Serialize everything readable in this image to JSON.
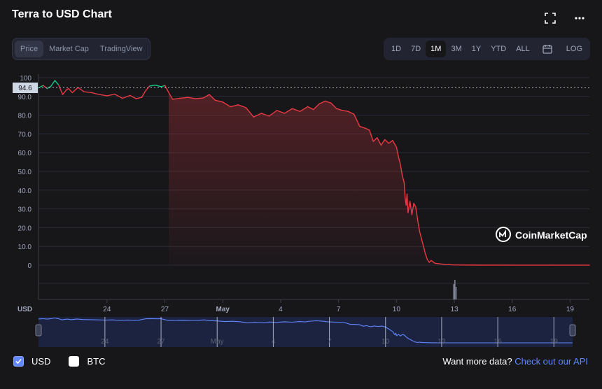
{
  "header": {
    "title": "Terra to USD Chart",
    "fullscreen_icon": "expand-icon",
    "more_icon": "more-horizontal-icon"
  },
  "view_tabs": [
    {
      "label": "Price",
      "active": true
    },
    {
      "label": "Market Cap",
      "active": false
    },
    {
      "label": "TradingView",
      "active": false
    }
  ],
  "range_tabs": [
    {
      "label": "1D",
      "active": false
    },
    {
      "label": "7D",
      "active": false
    },
    {
      "label": "1M",
      "active": true
    },
    {
      "label": "3M",
      "active": false
    },
    {
      "label": "1Y",
      "active": false
    },
    {
      "label": "YTD",
      "active": false
    },
    {
      "label": "ALL",
      "active": false
    }
  ],
  "calendar_icon": "calendar-icon",
  "log_label": "LOG",
  "colors": {
    "up": "#16c784",
    "down": "#ea3943",
    "accent": "#6188ff",
    "navigator": "#1c2340"
  },
  "chart_data": {
    "type": "line",
    "title": "",
    "xlabel": "",
    "ylabel": "",
    "currency_label": "USD",
    "current_price_label": "94.6",
    "ylim": [
      0,
      100
    ],
    "y_ticks": [
      "100",
      "90.0",
      "80.0",
      "70.0",
      "60.0",
      "50.0",
      "40.0",
      "30.0",
      "20.0",
      "10.0",
      "0"
    ],
    "y_tick_values": [
      100,
      90,
      80,
      70,
      60,
      50,
      40,
      30,
      20,
      10,
      0
    ],
    "x_ticks": [
      {
        "label": "24",
        "day": 3
      },
      {
        "label": "27",
        "day": 6
      },
      {
        "label": "May",
        "day": 9
      },
      {
        "label": "4",
        "day": 12
      },
      {
        "label": "7",
        "day": 15
      },
      {
        "label": "10",
        "day": 18
      },
      {
        "label": "13",
        "day": 21
      },
      {
        "label": "16",
        "day": 24
      },
      {
        "label": "19",
        "day": 27
      }
    ],
    "xlim": [
      -0.55,
      28
    ],
    "watermark": "CoinMarketCap",
    "series": [
      {
        "name": "USD",
        "points": [
          [
            -0.55,
            94.6
          ],
          [
            -0.3,
            95.8
          ],
          [
            -0.1,
            94.2
          ],
          [
            0.1,
            95.5
          ],
          [
            0.3,
            98.5
          ],
          [
            0.5,
            96.0
          ],
          [
            0.7,
            91.0
          ],
          [
            0.9,
            93.5
          ],
          [
            1.0,
            94.2
          ],
          [
            1.2,
            92.0
          ],
          [
            1.5,
            94.8
          ],
          [
            1.8,
            92.5
          ],
          [
            2.2,
            92.0
          ],
          [
            2.6,
            91.0
          ],
          [
            3.0,
            90.3
          ],
          [
            3.4,
            91.2
          ],
          [
            3.8,
            89.0
          ],
          [
            4.2,
            90.5
          ],
          [
            4.5,
            88.8
          ],
          [
            4.8,
            89.5
          ],
          [
            5.0,
            93.0
          ],
          [
            5.2,
            95.5
          ],
          [
            5.5,
            96.0
          ],
          [
            5.8,
            95.2
          ],
          [
            6.0,
            95.8
          ],
          [
            6.2,
            92.0
          ],
          [
            6.4,
            88.5
          ],
          [
            6.8,
            89.0
          ],
          [
            7.2,
            89.5
          ],
          [
            7.6,
            88.8
          ],
          [
            8.0,
            89.2
          ],
          [
            8.3,
            91.0
          ],
          [
            8.6,
            88.0
          ],
          [
            9.0,
            87.0
          ],
          [
            9.4,
            84.5
          ],
          [
            9.8,
            85.5
          ],
          [
            10.2,
            84.0
          ],
          [
            10.6,
            79.0
          ],
          [
            11.0,
            81.0
          ],
          [
            11.4,
            79.5
          ],
          [
            11.8,
            82.5
          ],
          [
            12.2,
            81.0
          ],
          [
            12.6,
            83.5
          ],
          [
            13.0,
            82.0
          ],
          [
            13.4,
            84.5
          ],
          [
            13.7,
            83.0
          ],
          [
            14.0,
            86.0
          ],
          [
            14.3,
            87.5
          ],
          [
            14.6,
            86.5
          ],
          [
            14.9,
            83.5
          ],
          [
            15.2,
            82.5
          ],
          [
            15.5,
            82.0
          ],
          [
            15.8,
            80.5
          ],
          [
            16.1,
            74.0
          ],
          [
            16.4,
            73.0
          ],
          [
            16.6,
            72.0
          ],
          [
            16.8,
            66.0
          ],
          [
            17.0,
            68.0
          ],
          [
            17.2,
            64.0
          ],
          [
            17.4,
            67.0
          ],
          [
            17.6,
            65.0
          ],
          [
            17.8,
            66.5
          ],
          [
            18.0,
            63.0
          ],
          [
            18.1,
            58.0
          ],
          [
            18.2,
            54.0
          ],
          [
            18.3,
            48.0
          ],
          [
            18.4,
            44.0
          ],
          [
            18.45,
            36.0
          ],
          [
            18.5,
            32.0
          ],
          [
            18.55,
            38.0
          ],
          [
            18.6,
            28.0
          ],
          [
            18.7,
            34.0
          ],
          [
            18.8,
            27.0
          ],
          [
            18.9,
            33.0
          ],
          [
            19.0,
            31.0
          ],
          [
            19.1,
            24.0
          ],
          [
            19.2,
            18.0
          ],
          [
            19.3,
            14.0
          ],
          [
            19.4,
            10.0
          ],
          [
            19.5,
            6.0
          ],
          [
            19.6,
            3.0
          ],
          [
            19.7,
            1.5
          ],
          [
            19.8,
            2.5
          ],
          [
            20.0,
            1.0
          ],
          [
            20.5,
            0.4
          ],
          [
            21.0,
            0.1
          ],
          [
            22.0,
            0.05
          ],
          [
            24.0,
            0.02
          ],
          [
            26.0,
            0.01
          ],
          [
            28.0,
            0.01
          ]
        ]
      }
    ]
  },
  "legend": [
    {
      "label": "USD",
      "checked": true
    },
    {
      "label": "BTC",
      "checked": false
    }
  ],
  "footer": {
    "api_prompt": "Want more data?",
    "api_link": "Check out our API"
  }
}
